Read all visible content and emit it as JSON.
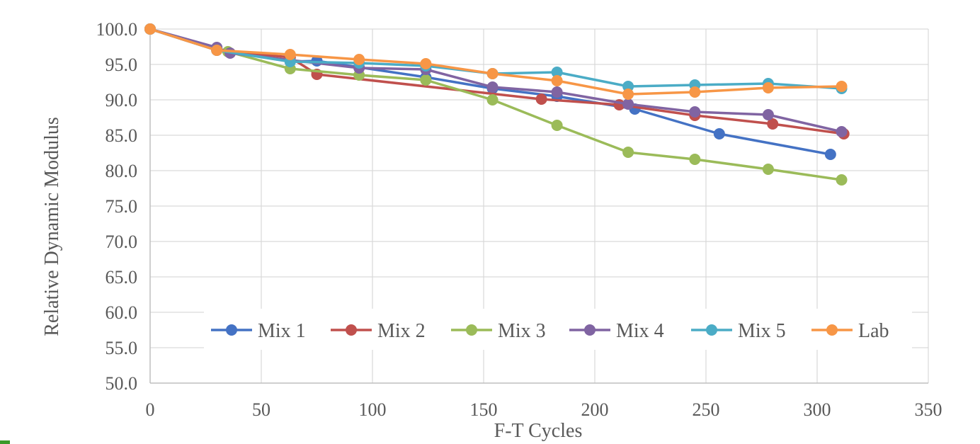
{
  "chart_data": {
    "type": "line",
    "title": "",
    "xlabel": "F-T Cycles",
    "ylabel": "Relative Dynamic Modulus",
    "xlim": [
      0,
      350
    ],
    "ylim": [
      50,
      100
    ],
    "xticks": [
      0,
      50,
      100,
      150,
      200,
      250,
      300,
      350
    ],
    "yticks": [
      50,
      55,
      60,
      65,
      70,
      75,
      80,
      85,
      90,
      95,
      100
    ],
    "xtick_labels": [
      "0",
      "50",
      "100",
      "150",
      "200",
      "250",
      "300",
      "350"
    ],
    "ytick_labels": [
      "50.0",
      "55.0",
      "60.0",
      "65.0",
      "70.0",
      "75.0",
      "80.0",
      "85.0",
      "90.0",
      "95.0",
      "100.0"
    ],
    "grid": "horizontal and vertical",
    "legend_position": "bottom-inside",
    "series": [
      {
        "name": "Mix 1",
        "color": "#4472c4",
        "x": [
          0,
          30,
          63,
          75,
          94,
          124,
          154,
          183,
          218,
          256,
          306
        ],
        "y": [
          100.0,
          97.1,
          95.4,
          95.5,
          94.6,
          93.2,
          91.6,
          90.5,
          88.7,
          85.2,
          82.3
        ]
      },
      {
        "name": "Mix 2",
        "color": "#c0504d",
        "x": [
          0,
          30,
          63,
          75,
          176,
          211,
          245,
          280,
          312
        ],
        "y": [
          100.0,
          97.0,
          96.0,
          93.6,
          90.1,
          89.3,
          87.8,
          86.6,
          85.2
        ]
      },
      {
        "name": "Mix 3",
        "color": "#9bbb59",
        "x": [
          0,
          35,
          63,
          94,
          124,
          154,
          183,
          215,
          245,
          278,
          311
        ],
        "y": [
          100.0,
          96.8,
          94.4,
          93.5,
          92.8,
          90.0,
          86.4,
          82.6,
          81.6,
          80.2,
          78.7
        ]
      },
      {
        "name": "Mix 4",
        "color": "#8064a2",
        "x": [
          0,
          30,
          36,
          94,
          124,
          154,
          183,
          215,
          245,
          278,
          311
        ],
        "y": [
          100.0,
          97.4,
          96.6,
          94.5,
          94.3,
          91.8,
          91.1,
          89.4,
          88.3,
          87.9,
          85.5
        ]
      },
      {
        "name": "Mix 5",
        "color": "#4bacc6",
        "x": [
          0,
          30,
          63,
          94,
          124,
          154,
          183,
          215,
          245,
          278,
          311
        ],
        "y": [
          100.0,
          97.0,
          95.4,
          95.2,
          94.8,
          93.7,
          93.9,
          91.9,
          92.1,
          92.3,
          91.6
        ]
      },
      {
        "name": "Lab",
        "color": "#f79646",
        "x": [
          0,
          30,
          63,
          94,
          124,
          154,
          183,
          215,
          245,
          278,
          311
        ],
        "y": [
          100.0,
          97.0,
          96.4,
          95.7,
          95.1,
          93.7,
          92.7,
          90.8,
          91.1,
          91.7,
          91.9
        ]
      }
    ]
  }
}
